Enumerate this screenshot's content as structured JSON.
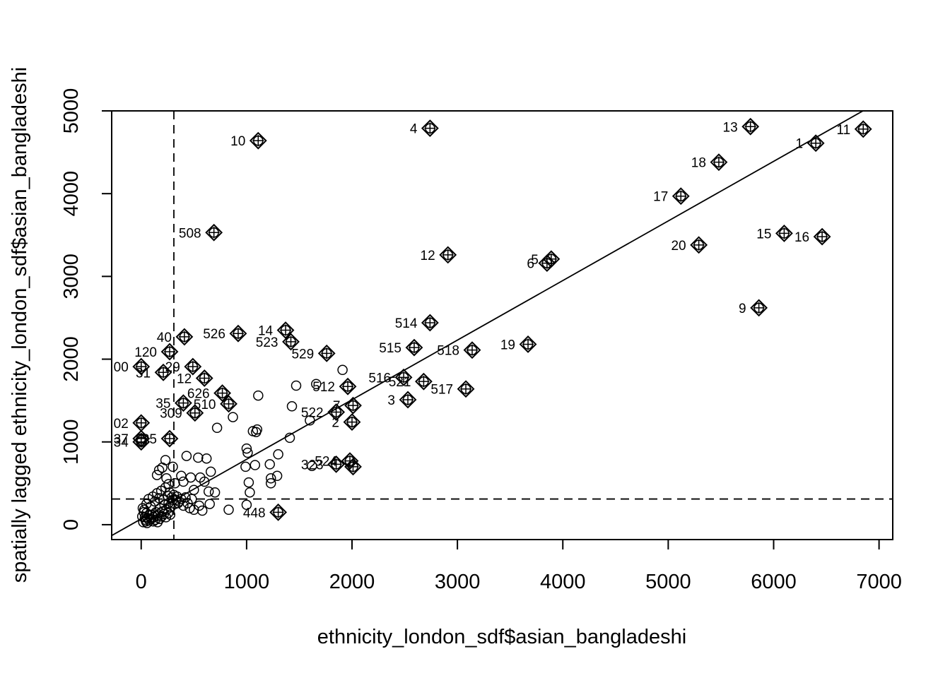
{
  "chart_data": {
    "type": "scatter",
    "title": "",
    "xlabel": "ethnicity_london_sdf$asian_bangladeshi",
    "ylabel": "spatially lagged ethnicity_london_sdf$asian_bangladeshi",
    "xlim": [
      -280,
      7130
    ],
    "ylim": [
      -180,
      5000
    ],
    "xticks": [
      0,
      1000,
      2000,
      3000,
      4000,
      5000,
      6000,
      7000
    ],
    "yticks": [
      0,
      1000,
      2000,
      3000,
      4000,
      5000
    ],
    "mean_x": 310,
    "mean_y": 310,
    "regression_line": {
      "intercept": 70,
      "slope": 0.72
    },
    "points": [
      {
        "x": 20,
        "y": 30
      },
      {
        "x": 40,
        "y": 60
      },
      {
        "x": 60,
        "y": 80
      },
      {
        "x": 80,
        "y": 50
      },
      {
        "x": 100,
        "y": 120
      },
      {
        "x": 120,
        "y": 90
      },
      {
        "x": 140,
        "y": 150
      },
      {
        "x": 160,
        "y": 110
      },
      {
        "x": 180,
        "y": 200
      },
      {
        "x": 200,
        "y": 160
      },
      {
        "x": 220,
        "y": 240
      },
      {
        "x": 240,
        "y": 180
      },
      {
        "x": 260,
        "y": 260
      },
      {
        "x": 280,
        "y": 210
      },
      {
        "x": 300,
        "y": 300
      },
      {
        "x": 320,
        "y": 250
      },
      {
        "x": 340,
        "y": 340
      },
      {
        "x": 360,
        "y": 280
      },
      {
        "x": 30,
        "y": 180
      },
      {
        "x": 50,
        "y": 250
      },
      {
        "x": 70,
        "y": 310
      },
      {
        "x": 90,
        "y": 220
      },
      {
        "x": 110,
        "y": 340
      },
      {
        "x": 130,
        "y": 280
      },
      {
        "x": 150,
        "y": 380
      },
      {
        "x": 170,
        "y": 320
      },
      {
        "x": 190,
        "y": 410
      },
      {
        "x": 210,
        "y": 300
      },
      {
        "x": 230,
        "y": 450
      },
      {
        "x": 250,
        "y": 350
      },
      {
        "x": 270,
        "y": 390
      },
      {
        "x": 290,
        "y": 330
      },
      {
        "x": 310,
        "y": 360
      },
      {
        "x": 330,
        "y": 300
      },
      {
        "x": 350,
        "y": 260
      },
      {
        "x": 380,
        "y": 310
      },
      {
        "x": 400,
        "y": 230
      },
      {
        "x": 420,
        "y": 330
      },
      {
        "x": 440,
        "y": 260
      },
      {
        "x": 460,
        "y": 200
      },
      {
        "x": 480,
        "y": 310
      },
      {
        "x": 500,
        "y": 180
      },
      {
        "x": 50,
        "y": 140
      },
      {
        "x": 75,
        "y": 110
      },
      {
        "x": 95,
        "y": 70
      },
      {
        "x": 115,
        "y": 40
      },
      {
        "x": 135,
        "y": 60
      },
      {
        "x": 155,
        "y": 30
      },
      {
        "x": 175,
        "y": 70
      },
      {
        "x": 195,
        "y": 100
      },
      {
        "x": 215,
        "y": 130
      },
      {
        "x": 235,
        "y": 90
      },
      {
        "x": 255,
        "y": 140
      },
      {
        "x": 275,
        "y": 120
      },
      {
        "x": 10,
        "y": 100
      },
      {
        "x": 15,
        "y": 200
      },
      {
        "x": 25,
        "y": 150
      },
      {
        "x": 35,
        "y": 90
      },
      {
        "x": 45,
        "y": 40
      },
      {
        "x": 55,
        "y": 20
      },
      {
        "x": 150,
        "y": 600
      },
      {
        "x": 170,
        "y": 660
      },
      {
        "x": 200,
        "y": 690
      },
      {
        "x": 240,
        "y": 560
      },
      {
        "x": 260,
        "y": 490
      },
      {
        "x": 230,
        "y": 780
      },
      {
        "x": 300,
        "y": 700
      },
      {
        "x": 320,
        "y": 500
      },
      {
        "x": 380,
        "y": 590
      },
      {
        "x": 400,
        "y": 520
      },
      {
        "x": 430,
        "y": 830
      },
      {
        "x": 470,
        "y": 570
      },
      {
        "x": 500,
        "y": 420
      },
      {
        "x": 540,
        "y": 810
      },
      {
        "x": 560,
        "y": 570
      },
      {
        "x": 600,
        "y": 520
      },
      {
        "x": 620,
        "y": 800
      },
      {
        "x": 640,
        "y": 400
      },
      {
        "x": 660,
        "y": 640
      },
      {
        "x": 700,
        "y": 390
      },
      {
        "x": 720,
        "y": 1170
      },
      {
        "x": 870,
        "y": 1300
      },
      {
        "x": 550,
        "y": 230
      },
      {
        "x": 580,
        "y": 170
      },
      {
        "x": 650,
        "y": 250
      },
      {
        "x": 830,
        "y": 180
      },
      {
        "x": 1000,
        "y": 240
      },
      {
        "x": 1030,
        "y": 390
      },
      {
        "x": 1020,
        "y": 510
      },
      {
        "x": 990,
        "y": 700
      },
      {
        "x": 1000,
        "y": 920
      },
      {
        "x": 1010,
        "y": 870
      },
      {
        "x": 1080,
        "y": 720
      },
      {
        "x": 1060,
        "y": 1130
      },
      {
        "x": 1090,
        "y": 1120
      },
      {
        "x": 1100,
        "y": 1150
      },
      {
        "x": 1110,
        "y": 1560
      },
      {
        "x": 1220,
        "y": 730
      },
      {
        "x": 1230,
        "y": 500
      },
      {
        "x": 1230,
        "y": 560
      },
      {
        "x": 1290,
        "y": 590
      },
      {
        "x": 1300,
        "y": 850
      },
      {
        "x": 1410,
        "y": 1050
      },
      {
        "x": 1430,
        "y": 1430
      },
      {
        "x": 1470,
        "y": 1680
      },
      {
        "x": 1600,
        "y": 1260
      },
      {
        "x": 1620,
        "y": 710
      },
      {
        "x": 1660,
        "y": 1700
      },
      {
        "x": 1910,
        "y": 1870
      }
    ],
    "outliers": [
      {
        "x": 1110,
        "y": 4640,
        "label": "10",
        "side": "left"
      },
      {
        "x": 2740,
        "y": 4790,
        "label": "4",
        "side": "left"
      },
      {
        "x": 5780,
        "y": 4810,
        "label": "13",
        "side": "left"
      },
      {
        "x": 6400,
        "y": 4610,
        "label": "1",
        "side": "left"
      },
      {
        "x": 6850,
        "y": 4780,
        "label": "11",
        "side": "left"
      },
      {
        "x": 5480,
        "y": 4380,
        "label": "18",
        "side": "left"
      },
      {
        "x": 5120,
        "y": 3970,
        "label": "17",
        "side": "left"
      },
      {
        "x": 690,
        "y": 3530,
        "label": "508",
        "side": "left"
      },
      {
        "x": 2910,
        "y": 3260,
        "label": "12",
        "side": "left"
      },
      {
        "x": 3890,
        "y": 3210,
        "label": "5",
        "side": "left"
      },
      {
        "x": 3850,
        "y": 3160,
        "label": "6",
        "side": "left"
      },
      {
        "x": 6100,
        "y": 3520,
        "label": "15",
        "side": "left"
      },
      {
        "x": 6460,
        "y": 3480,
        "label": "16",
        "side": "left"
      },
      {
        "x": 5290,
        "y": 3380,
        "label": "20",
        "side": "left"
      },
      {
        "x": 5860,
        "y": 2620,
        "label": "9",
        "side": "left"
      },
      {
        "x": 2740,
        "y": 2440,
        "label": "514",
        "side": "left"
      },
      {
        "x": 1370,
        "y": 2350,
        "label": "14",
        "side": "left"
      },
      {
        "x": 920,
        "y": 2310,
        "label": "526",
        "side": "left"
      },
      {
        "x": 410,
        "y": 2270,
        "label": "40",
        "side": "left"
      },
      {
        "x": 1420,
        "y": 2210,
        "label": "523",
        "side": "left"
      },
      {
        "x": 3670,
        "y": 2180,
        "label": "19",
        "side": "left"
      },
      {
        "x": 2590,
        "y": 2140,
        "label": "515",
        "side": "left"
      },
      {
        "x": 3140,
        "y": 2110,
        "label": "518",
        "side": "left"
      },
      {
        "x": 1760,
        "y": 2070,
        "label": "529",
        "side": "left"
      },
      {
        "x": 270,
        "y": 2090,
        "label": "120",
        "side": "left"
      },
      {
        "x": 0,
        "y": 1910,
        "label": "00",
        "side": "left"
      },
      {
        "x": 490,
        "y": 1910,
        "label": "29",
        "side": "left"
      },
      {
        "x": 210,
        "y": 1840,
        "label": "31",
        "side": "left"
      },
      {
        "x": 600,
        "y": 1770,
        "label": "12",
        "side": "left"
      },
      {
        "x": 2490,
        "y": 1780,
        "label": "516",
        "side": "left"
      },
      {
        "x": 2680,
        "y": 1730,
        "label": "521",
        "side": "left"
      },
      {
        "x": 1960,
        "y": 1670,
        "label": "512",
        "side": "left"
      },
      {
        "x": 3080,
        "y": 1640,
        "label": "517",
        "side": "left"
      },
      {
        "x": 770,
        "y": 1590,
        "label": "626",
        "side": "left"
      },
      {
        "x": 400,
        "y": 1470,
        "label": "35",
        "side": "left"
      },
      {
        "x": 830,
        "y": 1460,
        "label": "510",
        "side": "left"
      },
      {
        "x": 2530,
        "y": 1510,
        "label": "3",
        "side": "left"
      },
      {
        "x": 2010,
        "y": 1440,
        "label": "7",
        "side": "left"
      },
      {
        "x": 1850,
        "y": 1360,
        "label": "522",
        "side": "left"
      },
      {
        "x": 510,
        "y": 1350,
        "label": "309",
        "side": "left"
      },
      {
        "x": 0,
        "y": 1230,
        "label": "02",
        "side": "left"
      },
      {
        "x": 2000,
        "y": 1240,
        "label": "2",
        "side": "left"
      },
      {
        "x": 270,
        "y": 1040,
        "label": "25",
        "side": "left"
      },
      {
        "x": 0,
        "y": 1040,
        "label": "37",
        "side": "left"
      },
      {
        "x": 0,
        "y": 1000,
        "label": "34",
        "side": "left"
      },
      {
        "x": 1850,
        "y": 730,
        "label": "323",
        "side": "left"
      },
      {
        "x": 1980,
        "y": 770,
        "label": "524",
        "side": "left"
      },
      {
        "x": 2010,
        "y": 700,
        "label": "",
        "side": "left"
      },
      {
        "x": 1300,
        "y": 150,
        "label": "448",
        "side": "left"
      }
    ]
  }
}
